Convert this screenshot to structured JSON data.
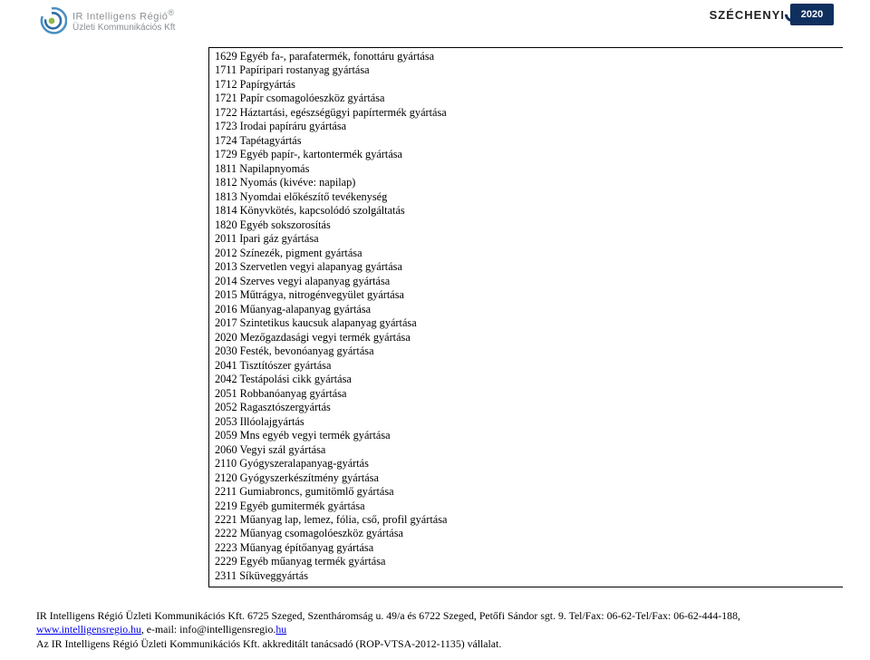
{
  "header": {
    "logo": {
      "line1": "IR Intelligens Régió",
      "line2": "Üzleti Kommunikációs Kft",
      "reg": "®"
    },
    "szechenyi": {
      "name": "SZÉCHENYI",
      "year": "2020"
    }
  },
  "list": {
    "items": [
      "1629 Egyéb fa-, parafatermék, fonottáru gyártása",
      "1711 Papíripari rostanyag gyártása",
      "1712 Papírgyártás",
      "1721 Papír csomagolóeszköz gyártása",
      "1722 Háztartási, egészségügyi papírtermék gyártása",
      "1723 Irodai papíráru gyártása",
      "1724 Tapétagyártás",
      "1729 Egyéb papír-, kartontermék gyártása",
      "1811 Napilapnyomás",
      "1812 Nyomás (kivéve: napilap)",
      "1813 Nyomdai előkészítő tevékenység",
      "1814 Könyvkötés, kapcsolódó szolgáltatás",
      "1820 Egyéb sokszorosítás",
      "2011 Ipari gáz gyártása",
      "2012 Színezék, pigment gyártása",
      "2013 Szervetlen vegyi alapanyag gyártása",
      "2014 Szerves vegyi alapanyag gyártása",
      "2015 Műtrágya, nitrogénvegyület gyártása",
      "2016 Műanyag-alapanyag gyártása",
      "2017 Szintetikus kaucsuk alapanyag gyártása",
      "2020 Mezőgazdasági vegyi termék gyártása",
      "2030 Festék, bevonóanyag gyártása",
      "2041 Tisztítószer gyártása",
      "2042 Testápolási cikk gyártása",
      "2051 Robbanóanyag gyártása",
      "2052 Ragasztószergyártás",
      "2053 Illóolajgyártás",
      "2059 Mns egyéb vegyi termék gyártása",
      "2060 Vegyi szál gyártása",
      "2110 Gyógyszeralapanyag-gyártás",
      "2120 Gyógyszerkészítmény gyártása",
      "2211 Gumiabroncs, gumitömlő gyártása",
      "2219 Egyéb gumitermék gyártása",
      "2221 Műanyag lap, lemez, fólia, cső, profil gyártása",
      "2222 Műanyag csomagolóeszköz gyártása",
      "2223 Műanyag építőanyag gyártása",
      "2229 Egyéb műanyag termék gyártása",
      "2311 Síküveggyártás"
    ]
  },
  "footer": {
    "line1_prefix": "IR Intelligens Régió Üzleti Kommunikációs Kft. 6725 Szeged, Szentháromság u. 49/a és 6722 Szeged, Petőfi Sándor sgt. 9. Tel/Fax: 06-62-Tel/Fax: 06-62-444-188,",
    "link1": "www.intelligensregio.hu",
    "mid": ", e-mail: info@intelligensregio.",
    "link2": "hu",
    "line3": "Az IR Intelligens Régió Üzleti Kommunikációs Kft. akkreditált tanácsadó (ROP-VTSA-2012-1135) vállalat."
  }
}
